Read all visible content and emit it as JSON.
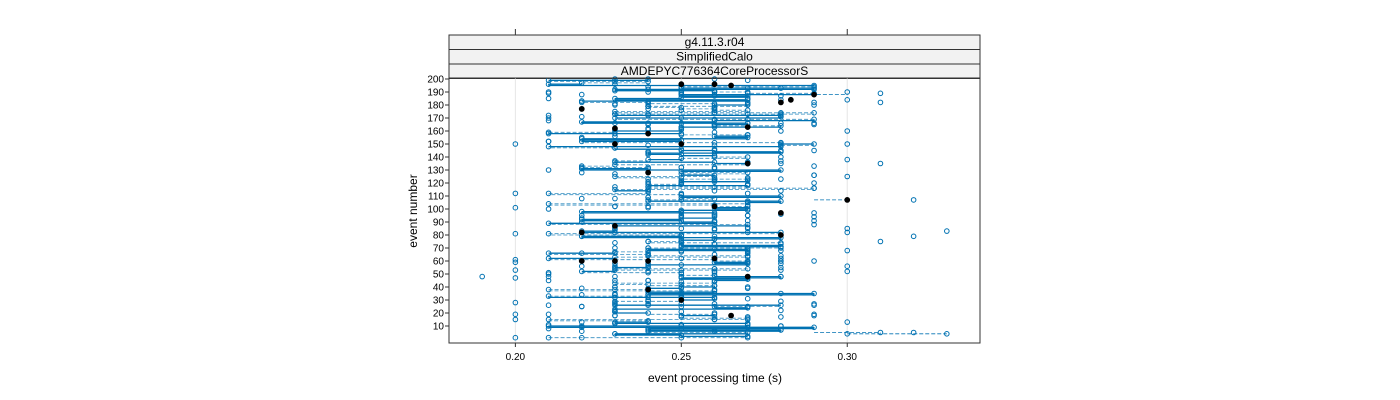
{
  "chart_data": {
    "type": "scatter",
    "panel": {
      "strips": [
        "g4.11.3.r04",
        "SimplifiedCalo",
        "AMDEPYC776364CoreProcessorS"
      ]
    },
    "xlabel": "event processing time (s)",
    "ylabel": "event number",
    "xlim": [
      0.18,
      0.34
    ],
    "ylim": [
      0,
      200
    ],
    "x_ticks": [
      "0.20",
      "0.25",
      "0.30"
    ],
    "y_ticks": [
      "10",
      "20",
      "30",
      "40",
      "50",
      "60",
      "70",
      "80",
      "90",
      "100",
      "110",
      "120",
      "130",
      "140",
      "150",
      "160",
      "170",
      "180",
      "190",
      "200"
    ],
    "grid": "vertical",
    "colors": {
      "points": "#0072b2",
      "highlight": "#000000",
      "strip_bg": "#f2f2f2"
    },
    "time_levels": [
      0.21,
      0.22,
      0.23,
      0.24,
      0.25,
      0.26,
      0.27,
      0.28,
      0.29
    ],
    "highlighted_points": [
      {
        "x": 0.22,
        "y": 177
      },
      {
        "x": 0.23,
        "y": 162
      },
      {
        "x": 0.23,
        "y": 150
      },
      {
        "x": 0.24,
        "y": 158
      },
      {
        "x": 0.24,
        "y": 128
      },
      {
        "x": 0.25,
        "y": 196
      },
      {
        "x": 0.25,
        "y": 150
      },
      {
        "x": 0.26,
        "y": 196
      },
      {
        "x": 0.265,
        "y": 195
      },
      {
        "x": 0.27,
        "y": 163
      },
      {
        "x": 0.27,
        "y": 135
      },
      {
        "x": 0.28,
        "y": 182
      },
      {
        "x": 0.283,
        "y": 184
      },
      {
        "x": 0.28,
        "y": 97
      },
      {
        "x": 0.28,
        "y": 80
      },
      {
        "x": 0.29,
        "y": 188
      },
      {
        "x": 0.3,
        "y": 107
      },
      {
        "x": 0.22,
        "y": 82
      },
      {
        "x": 0.23,
        "y": 87
      },
      {
        "x": 0.22,
        "y": 60
      },
      {
        "x": 0.23,
        "y": 60
      },
      {
        "x": 0.24,
        "y": 60
      },
      {
        "x": 0.26,
        "y": 62
      },
      {
        "x": 0.265,
        "y": 18
      },
      {
        "x": 0.27,
        "y": 48
      },
      {
        "x": 0.24,
        "y": 38
      },
      {
        "x": 0.25,
        "y": 30
      },
      {
        "x": 0.26,
        "y": 102
      }
    ],
    "isolated_points": [
      {
        "x": 0.19,
        "y": 48
      },
      {
        "x": 0.2,
        "y": 150
      },
      {
        "x": 0.2,
        "y": 112
      },
      {
        "x": 0.2,
        "y": 101
      },
      {
        "x": 0.2,
        "y": 81
      },
      {
        "x": 0.2,
        "y": 61
      },
      {
        "x": 0.2,
        "y": 59
      },
      {
        "x": 0.2,
        "y": 53
      },
      {
        "x": 0.2,
        "y": 47
      },
      {
        "x": 0.2,
        "y": 28
      },
      {
        "x": 0.2,
        "y": 19
      },
      {
        "x": 0.2,
        "y": 15
      },
      {
        "x": 0.2,
        "y": 1
      },
      {
        "x": 0.3,
        "y": 190
      },
      {
        "x": 0.3,
        "y": 184
      },
      {
        "x": 0.3,
        "y": 160
      },
      {
        "x": 0.3,
        "y": 150
      },
      {
        "x": 0.3,
        "y": 138
      },
      {
        "x": 0.3,
        "y": 125
      },
      {
        "x": 0.3,
        "y": 85
      },
      {
        "x": 0.3,
        "y": 82
      },
      {
        "x": 0.3,
        "y": 68
      },
      {
        "x": 0.3,
        "y": 56
      },
      {
        "x": 0.3,
        "y": 52
      },
      {
        "x": 0.3,
        "y": 13
      },
      {
        "x": 0.3,
        "y": 4
      },
      {
        "x": 0.31,
        "y": 189
      },
      {
        "x": 0.31,
        "y": 182
      },
      {
        "x": 0.31,
        "y": 135
      },
      {
        "x": 0.31,
        "y": 75
      },
      {
        "x": 0.31,
        "y": 5
      },
      {
        "x": 0.32,
        "y": 107
      },
      {
        "x": 0.32,
        "y": 79
      },
      {
        "x": 0.32,
        "y": 5
      },
      {
        "x": 0.33,
        "y": 83
      },
      {
        "x": 0.33,
        "y": 4
      },
      {
        "x": 0.29,
        "y": 165
      },
      {
        "x": 0.29,
        "y": 133
      },
      {
        "x": 0.29,
        "y": 126
      },
      {
        "x": 0.29,
        "y": 120
      }
    ]
  }
}
